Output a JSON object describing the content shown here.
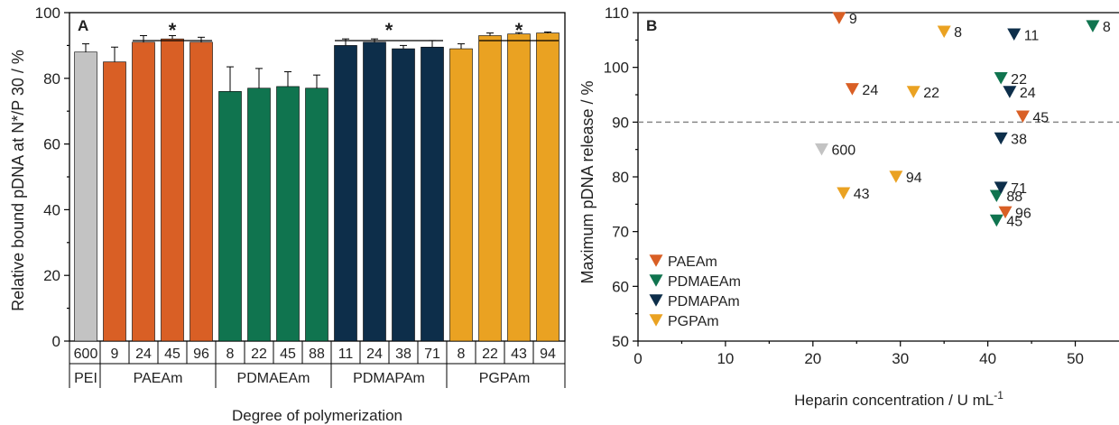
{
  "chart_data": [
    {
      "type": "bar",
      "panel_label": "A",
      "ylabel": "Relative bound pDNA at N*/P 30 / %",
      "xlabel": "Degree of polymerization",
      "ylim": [
        0,
        100
      ],
      "yticks": [
        0,
        20,
        40,
        60,
        80,
        100
      ],
      "groups": [
        {
          "name": "PEI",
          "color": "#c3c3c3",
          "bars": [
            {
              "dp": "600",
              "value": 88,
              "error": 2.5
            }
          ]
        },
        {
          "name": "PAEAm",
          "color": "#d95f25",
          "bars": [
            {
              "dp": "9",
              "value": 85,
              "error": 4.5
            },
            {
              "dp": "24",
              "value": 91,
              "error": 2
            },
            {
              "dp": "45",
              "value": 92,
              "error": 1
            },
            {
              "dp": "96",
              "value": 91,
              "error": 1.5
            }
          ]
        },
        {
          "name": "PDMAEAm",
          "color": "#10744f",
          "bars": [
            {
              "dp": "8",
              "value": 76,
              "error": 7.5
            },
            {
              "dp": "22",
              "value": 77,
              "error": 6
            },
            {
              "dp": "45",
              "value": 77.5,
              "error": 4.5
            },
            {
              "dp": "88",
              "value": 77,
              "error": 4
            }
          ]
        },
        {
          "name": "PDMAPAm",
          "color": "#0d2e4a",
          "bars": [
            {
              "dp": "11",
              "value": 90,
              "error": 2
            },
            {
              "dp": "24",
              "value": 91,
              "error": 1
            },
            {
              "dp": "38",
              "value": 89,
              "error": 1
            },
            {
              "dp": "71",
              "value": 89.5,
              "error": 2
            }
          ]
        },
        {
          "name": "PGPAm",
          "color": "#eaa222",
          "bars": [
            {
              "dp": "8",
              "value": 89,
              "error": 1.5
            },
            {
              "dp": "22",
              "value": 93,
              "error": 0.8
            },
            {
              "dp": "43",
              "value": 93.5,
              "error": 0.4
            },
            {
              "dp": "94",
              "value": 93.8,
              "error": 0.3
            }
          ]
        }
      ],
      "significance": [
        {
          "label": "*",
          "from_bar": 2,
          "to_bar": 4
        },
        {
          "label": "*",
          "from_bar": 9,
          "to_bar": 12
        },
        {
          "label": "*",
          "from_bar": 14,
          "to_bar": 16
        }
      ]
    },
    {
      "type": "scatter",
      "panel_label": "B",
      "xlabel": "Heparin concentration / U mL",
      "xlabel_superscript": "-1",
      "ylabel": "Maximum pDNA release / %",
      "xlim": [
        0,
        55
      ],
      "ylim": [
        50,
        110
      ],
      "xticks": [
        0,
        10,
        20,
        30,
        40,
        50
      ],
      "yticks": [
        50,
        60,
        70,
        80,
        90,
        100,
        110
      ],
      "reference_line_y": 90,
      "marker": "triangle-down",
      "series": [
        {
          "name": "PAEAm",
          "color": "#d95f25",
          "points": [
            {
              "x": 23,
              "y": 109,
              "label": "9"
            },
            {
              "x": 24.5,
              "y": 96,
              "label": "24"
            },
            {
              "x": 44,
              "y": 91,
              "label": "45"
            },
            {
              "x": 42,
              "y": 73.5,
              "label": "96"
            }
          ]
        },
        {
          "name": "PDMAEAm",
          "color": "#10744f",
          "points": [
            {
              "x": 52,
              "y": 107.5,
              "label": "8"
            },
            {
              "x": 41.5,
              "y": 98,
              "label": "22"
            },
            {
              "x": 41,
              "y": 72,
              "label": "45"
            },
            {
              "x": 41,
              "y": 76.5,
              "label": "88"
            }
          ]
        },
        {
          "name": "PDMAPAm",
          "color": "#0d2e4a",
          "points": [
            {
              "x": 43,
              "y": 106,
              "label": "11"
            },
            {
              "x": 42.5,
              "y": 95.5,
              "label": "24"
            },
            {
              "x": 41.5,
              "y": 87,
              "label": "38"
            },
            {
              "x": 41.5,
              "y": 78,
              "label": "71"
            }
          ]
        },
        {
          "name": "PGPAm",
          "color": "#eaa222",
          "points": [
            {
              "x": 35,
              "y": 106.5,
              "label": "8"
            },
            {
              "x": 31.5,
              "y": 95.5,
              "label": "22"
            },
            {
              "x": 23.5,
              "y": 77,
              "label": "43"
            },
            {
              "x": 29.5,
              "y": 80,
              "label": "94"
            }
          ]
        },
        {
          "name": "",
          "color": "#c3c3c3",
          "points": [
            {
              "x": 21,
              "y": 85,
              "label": "600"
            }
          ]
        }
      ],
      "legend": [
        "PAEAm",
        "PDMAEAm",
        "PDMAPAm",
        "PGPAm"
      ],
      "legend_position": "bottom-left"
    }
  ]
}
